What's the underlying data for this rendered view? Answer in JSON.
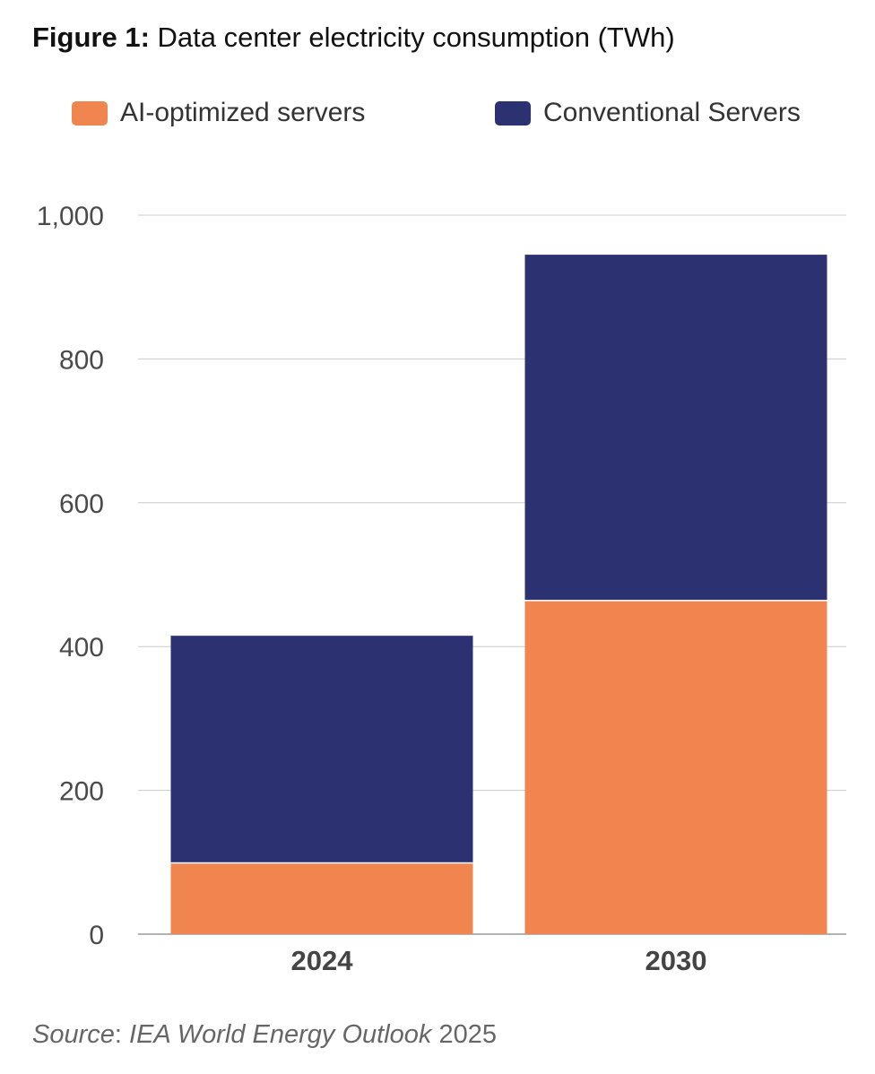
{
  "header": {
    "title_prefix": "Figure 1:",
    "title_text": " Data center electricity consumption (TWh)"
  },
  "legend": [
    {
      "label": "AI-optimized servers",
      "color": "#F08550"
    },
    {
      "label": "Conventional Servers",
      "color": "#2B3171"
    }
  ],
  "source": {
    "label": "Source",
    "separator": ": ",
    "publication": "IEA World Energy Outlook",
    "year": " 2025"
  },
  "chart_data": {
    "type": "bar",
    "stacked": true,
    "title": "Figure 1: Data center electricity consumption (TWh)",
    "categories": [
      "2024",
      "2030"
    ],
    "series": [
      {
        "name": "AI-optimized servers",
        "color": "#F08550",
        "values": [
          100,
          465
        ]
      },
      {
        "name": "Conventional Servers",
        "color": "#2B3171",
        "values": [
          315,
          480
        ]
      }
    ],
    "ylim": [
      0,
      1000
    ],
    "yticks": [
      0,
      200,
      400,
      600,
      800,
      1000
    ],
    "ytick_labels": [
      "0",
      "200",
      "400",
      "600",
      "800",
      "1,000"
    ],
    "grid": true,
    "legend_position": "top"
  }
}
